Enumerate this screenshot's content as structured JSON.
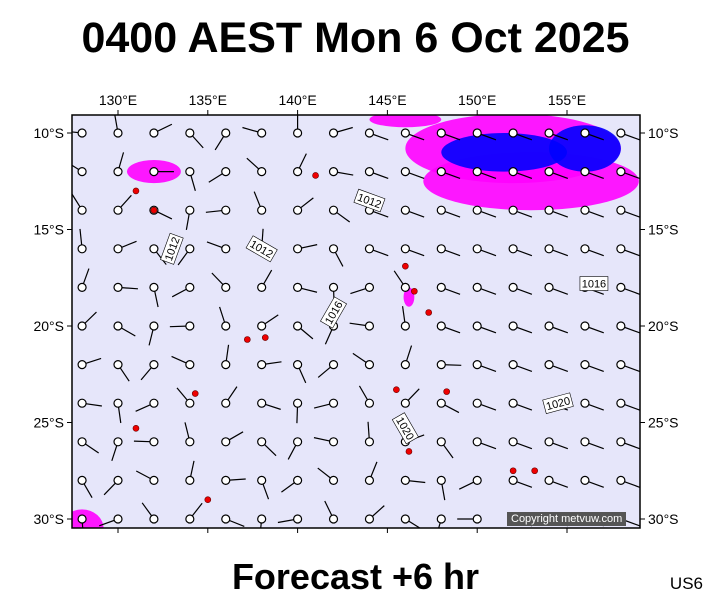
{
  "title": "0400 AEST Mon 6 Oct 2025",
  "footer": "Forecast +6 hr",
  "region_code": "US6",
  "copyright": "Copyright metvuw.com",
  "colors": {
    "ocean": "#e6e6fa",
    "land": "#c4d6c0",
    "isobar": "#ff0000",
    "rain_light": "#ff00ff",
    "rain_heavy": "#0000ff"
  },
  "lon_labels": [
    "130°E",
    "135°E",
    "140°E",
    "145°E",
    "150°E",
    "155°E"
  ],
  "lat_labels": [
    "10°S",
    "15°S",
    "20°S",
    "25°S",
    "30°S"
  ],
  "isobar_labels": [
    "1012",
    "1012",
    "1012",
    "1016",
    "1016",
    "1020",
    "1020"
  ]
}
